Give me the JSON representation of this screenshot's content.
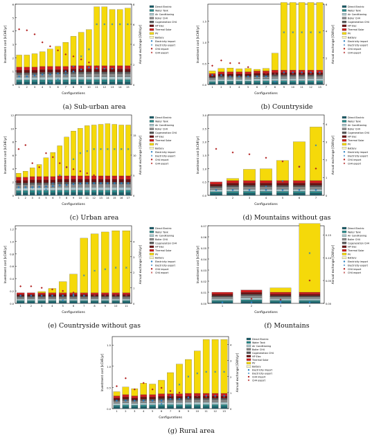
{
  "legend_items": [
    {
      "label": "Direct Electric",
      "color": "#1f5f6b",
      "kind": "bar"
    },
    {
      "label": "Water Tank",
      "color": "#2a8a8a",
      "kind": "bar"
    },
    {
      "label": "Air Conditioning",
      "color": "#a7c3c8",
      "kind": "bar"
    },
    {
      "label": "Boiler CH4",
      "color": "#8a8a8a",
      "kind": "bar"
    },
    {
      "label": "Cogeneration CH4",
      "color": "#5a5a5a",
      "kind": "bar"
    },
    {
      "label": "HP Elec",
      "color": "#6b1212",
      "kind": "bar"
    },
    {
      "label": "Thermal Solar",
      "color": "#cc1f1f",
      "kind": "bar"
    },
    {
      "label": "PV",
      "color": "#f5d90a",
      "kind": "bar"
    },
    {
      "label": "Battery",
      "color": "#f7f3c0",
      "kind": "bar"
    },
    {
      "label": "Electricity import",
      "color": "#2a7fc1",
      "kind": "marker"
    },
    {
      "label": "Electricity export",
      "color": "#2a7fc1",
      "kind": "marker-x"
    },
    {
      "label": "CH4 import",
      "color": "#b22222",
      "kind": "marker"
    },
    {
      "label": "CH4 export",
      "color": "#b22222",
      "kind": "marker-x"
    }
  ],
  "chart_data": [
    {
      "type": "bar",
      "caption": "(a) Sub-urban area",
      "xlabel": "Configurations",
      "ylabel": "Investment cost [kCHF/yr]",
      "y2label": "Annual exchange [GWh/yr]",
      "categories": [
        "1",
        "2",
        "3",
        "4",
        "5",
        "6",
        "7",
        "8",
        "9",
        "10",
        "11",
        "12",
        "13",
        "14",
        "15"
      ],
      "ylim": [
        0,
        6
      ],
      "yticks": [
        "0",
        "1",
        "2",
        "3",
        "4",
        "5",
        "6"
      ],
      "y2lim": [
        0,
        8
      ],
      "y2ticks": [
        "0",
        "2",
        "4",
        "6",
        "8"
      ],
      "base_values": [
        1.3,
        1.3,
        1.3,
        1.35,
        1.35,
        1.35,
        1.35,
        1.4,
        1.4,
        1.4,
        1.4,
        1.4,
        1.4,
        1.4,
        1.4
      ],
      "pv_values": [
        0.9,
        0.9,
        1.0,
        1.1,
        1.3,
        1.5,
        1.8,
        2.2,
        2.5,
        2.7,
        4.4,
        4.4,
        4.2,
        4.2,
        4.3
      ],
      "elec_import": [
        0.8,
        0.8,
        0.9,
        1.0,
        1.0,
        1.1,
        1.3,
        1.3,
        1.5,
        1.7,
        1.6,
        1.6,
        1.6,
        1.6,
        1.6
      ],
      "elec_export": [
        0,
        0,
        0,
        0,
        0.2,
        0.5,
        1.0,
        1.8,
        2.8,
        3.5,
        6.0,
        6.0,
        6.0,
        6.0,
        6.0
      ],
      "ch4_import": [
        5.5,
        5.4,
        5.0,
        4.2,
        3.8,
        3.4,
        3.0,
        2.8,
        2.5,
        2.2,
        1.8,
        1.7,
        1.7,
        1.6,
        1.6
      ]
    },
    {
      "type": "bar",
      "caption": "(b) Countryside",
      "xlabel": "Configurations",
      "ylabel": "Investment cost [kCHF/yr]",
      "y2label": "Annual exchange [GWh/yr]",
      "categories": [
        "1",
        "2",
        "3",
        "4",
        "5",
        "6",
        "7",
        "8",
        "9",
        "10",
        "11",
        "12",
        "13"
      ],
      "ylim": [
        0,
        1.9
      ],
      "yticks": [
        "0.0",
        "0.5",
        "1.0",
        "1.5"
      ],
      "y2lim": [
        0,
        6
      ],
      "y2ticks": [
        "0",
        "2",
        "4",
        "6"
      ],
      "base_values": [
        0.26,
        0.3,
        0.3,
        0.3,
        0.3,
        0.32,
        0.32,
        0.34,
        0.34,
        0.34,
        0.34,
        0.34,
        0.34
      ],
      "pv_values": [
        0.06,
        0.08,
        0.09,
        0.07,
        0.08,
        0.04,
        0.06,
        0.4,
        1.6,
        1.6,
        1.6,
        1.6,
        1.6
      ],
      "elec_import": [
        0.7,
        0.7,
        0.6,
        0.6,
        0.6,
        0.6,
        0.6,
        0.8,
        0.9,
        0.9,
        0.9,
        0.9,
        0.9
      ],
      "elec_export": [
        0,
        0,
        0,
        0,
        0,
        0,
        0,
        0.2,
        3.9,
        3.9,
        3.9,
        3.9,
        3.9
      ],
      "ch4_import": [
        1.4,
        1.8,
        1.6,
        1.6,
        1.3,
        0.9,
        0.8,
        0.8,
        0.8,
        0.8,
        0.8,
        0.8,
        0.8
      ]
    },
    {
      "type": "bar",
      "caption": "(c) Urban area",
      "xlabel": "Configurations",
      "ylabel": "Investment cost [kCHF/yr]",
      "y2label": "Annual exchange [GWh/yr]",
      "categories": [
        "1",
        "2",
        "3",
        "4",
        "5",
        "6",
        "7",
        "8",
        "9",
        "10",
        "11",
        "12",
        "13",
        "14",
        "15",
        "16",
        "17"
      ],
      "ylim": [
        0,
        12
      ],
      "yticks": [
        "0",
        "2",
        "4",
        "6",
        "8",
        "10",
        "12"
      ],
      "y2lim": [
        0,
        20
      ],
      "y2ticks": [
        "0",
        "5",
        "10",
        "15"
      ],
      "base_values": [
        2.7,
        2.7,
        2.8,
        2.8,
        2.8,
        2.8,
        2.9,
        2.9,
        2.9,
        2.9,
        2.9,
        2.9,
        2.9,
        2.9,
        2.9,
        2.9,
        2.9
      ],
      "pv_values": [
        0.6,
        0.9,
        1.3,
        1.8,
        2.8,
        3.6,
        4.5,
        5.8,
        6.7,
        7.1,
        7.5,
        7.6,
        7.7,
        7.8,
        7.7,
        7.6,
        7.6
      ],
      "elec_import": [
        2.0,
        2.0,
        2.0,
        2.1,
        2.2,
        2.3,
        2.5,
        2.6,
        2.8,
        2.9,
        3.0,
        3.0,
        3.0,
        3.0,
        3.0,
        3.0,
        3.0
      ],
      "elec_export": [
        0,
        0,
        0,
        0.5,
        1.5,
        3.0,
        5.0,
        7.0,
        9.0,
        10.5,
        11.0,
        11.5,
        11.5,
        11.5,
        11.5,
        11.5,
        11.5
      ],
      "ch4_import": [
        11.5,
        12.5,
        8.0,
        7.0,
        10.5,
        9.5,
        8.0,
        7.0,
        6.5,
        6.0,
        5.5,
        5.0,
        4.5,
        4.5,
        4.5,
        4.5,
        4.5
      ]
    },
    {
      "type": "bar",
      "caption": "(d) Mountains without gas",
      "xlabel": "Configurations",
      "ylabel": "Investment cost [kCHF/yr]",
      "y2label": "Annual exchange [GWh/yr]",
      "categories": [
        "1",
        "2",
        "3",
        "4",
        "5",
        "6",
        "7"
      ],
      "ylim": [
        0,
        3
      ],
      "yticks": [
        "0.0",
        "0.5",
        "1.0",
        "1.5",
        "2.0",
        "2.5",
        "3.0"
      ],
      "y2lim": [
        0,
        4.5
      ],
      "y2ticks": [
        "0",
        "1",
        "2",
        "3",
        "4"
      ],
      "base_values": [
        0.5,
        0.55,
        0.55,
        0.55,
        0.55,
        0.55,
        0.55
      ],
      "pv_values": [
        0,
        0.08,
        0.42,
        0.44,
        0.75,
        1.45,
        2.0
      ],
      "elec_import": [
        0.3,
        0.3,
        0.3,
        0.3,
        0.3,
        0.3,
        0.3
      ],
      "elec_export": [
        0,
        0,
        0.3,
        0.5,
        0.8,
        1.6,
        2.8
      ],
      "ch4_import": [
        2.6,
        2.4,
        2.3,
        2.1,
        1.9,
        1.6,
        1.5
      ]
    },
    {
      "type": "bar",
      "caption": "(e) Countryside without gas",
      "xlabel": "Configurations",
      "ylabel": "Investment cost [kCHF/yr]",
      "y2label": "Annual exchange [GWh/yr]",
      "categories": [
        "1",
        "2",
        "3",
        "4",
        "5",
        "6",
        "7",
        "8",
        "9",
        "10",
        "11"
      ],
      "ylim": [
        0,
        1.25
      ],
      "yticks": [
        "0.0",
        "0.2",
        "0.4",
        "0.6",
        "0.8",
        "1.0",
        "1.2"
      ],
      "y2lim": [
        0,
        5
      ],
      "y2ticks": [
        "0",
        "1",
        "2",
        "3",
        "4"
      ],
      "base_values": [
        0.17,
        0.17,
        0.17,
        0.17,
        0.17,
        0.17,
        0.17,
        0.17,
        0.17,
        0.17,
        0.17
      ],
      "pv_values": [
        0,
        0,
        0.02,
        0.07,
        0.18,
        0.3,
        0.88,
        0.95,
        0.98,
        1.0,
        1.0
      ],
      "elec_import": [
        0.5,
        0.5,
        0.5,
        0.5,
        0.5,
        0.5,
        0.5,
        0.5,
        0.5,
        0.5,
        0.5
      ],
      "elec_export": [
        0,
        0,
        0,
        0,
        0.2,
        0.6,
        1.8,
        2.1,
        2.2,
        2.3,
        2.3
      ],
      "ch4_import": [
        1.1,
        1.1,
        1.0,
        0.9,
        0.8,
        0.7,
        0.6,
        0.5,
        0.5,
        0.5,
        0.5
      ]
    },
    {
      "type": "bar",
      "caption": "(f) Mountains",
      "xlabel": "Configurations",
      "ylabel": "Investment cost [kCHF/yr]",
      "y2label": "Annual exchange [GWh/yr]",
      "categories": [
        "1",
        "2",
        "3",
        "4"
      ],
      "ylim": [
        0,
        0.07
      ],
      "yticks": [
        "0.00",
        "0.01",
        "0.02",
        "0.03",
        "0.04",
        "0.05",
        "0.06",
        "0.07"
      ],
      "y2lim": [
        0,
        0.17
      ],
      "y2ticks": [
        "0.00",
        "0.05",
        "0.10",
        "0.15"
      ],
      "base_values": [
        0.01,
        0.012,
        0.01,
        0.01
      ],
      "pv_values": [
        0,
        0,
        0.004,
        0.062
      ],
      "elec_import": [
        0.002,
        0.002,
        0.002,
        0.002
      ],
      "elec_export": [
        0,
        0,
        0.005,
        0.11
      ],
      "ch4_import": [
        0,
        0.01,
        0.008,
        0.05
      ]
    },
    {
      "type": "bar",
      "caption": "(g) Rural area",
      "xlabel": "Configurations",
      "ylabel": "Investment cost [kCHF/yr]",
      "y2label": "Annual exchange [GWh/yr]",
      "categories": [
        "1",
        "2",
        "3",
        "4",
        "5",
        "6",
        "7",
        "8",
        "9",
        "10",
        "11",
        "12",
        "13"
      ],
      "ylim": [
        0,
        1.7
      ],
      "yticks": [
        "0.0",
        "0.5",
        "1.0",
        "1.5"
      ],
      "y2lim": [
        0,
        4.5
      ],
      "y2ticks": [
        "0",
        "1",
        "2",
        "3",
        "4"
      ],
      "base_values": [
        0.3,
        0.33,
        0.3,
        0.33,
        0.33,
        0.35,
        0.35,
        0.35,
        0.36,
        0.36,
        0.36,
        0.36,
        0.36
      ],
      "pv_values": [
        0.1,
        0.18,
        0.17,
        0.27,
        0.25,
        0.32,
        0.5,
        0.7,
        0.8,
        1.0,
        1.27,
        1.27,
        1.27
      ],
      "elec_import": [
        0.5,
        0.5,
        0.5,
        0.5,
        0.5,
        0.5,
        0.6,
        0.6,
        0.7,
        0.8,
        0.8,
        0.8,
        0.8
      ],
      "elec_export": [
        0,
        0,
        0,
        0,
        0,
        0.3,
        0.8,
        1.5,
        2.0,
        2.2,
        2.3,
        2.3,
        2.3
      ],
      "ch4_import": [
        1.4,
        1.9,
        1.2,
        1.6,
        1.2,
        1.3,
        1.1,
        1.0,
        0.9,
        0.8,
        0.7,
        0.7,
        0.7
      ]
    }
  ]
}
